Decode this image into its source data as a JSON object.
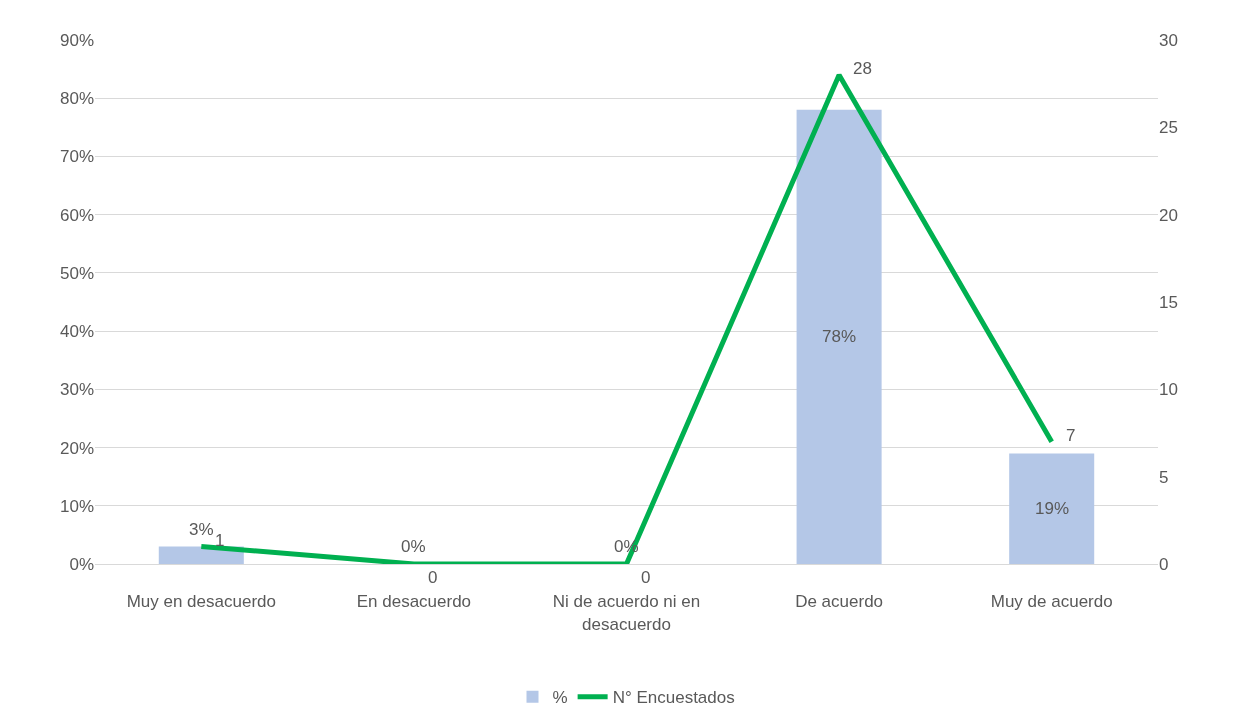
{
  "chart_data": {
    "type": "bar",
    "categories": [
      "Muy en desacuerdo",
      "En desacuerdo",
      "Ni de acuerdo ni en desacuerdo",
      "De acuerdo",
      "Muy de acuerdo"
    ],
    "series": [
      {
        "name": "%",
        "color": "#b4c7e7",
        "values": [
          3,
          0,
          0,
          78,
          19
        ],
        "value_labels": [
          "3%",
          "0%",
          "0%",
          "78%",
          "19%"
        ]
      },
      {
        "name": "N° Encuestados",
        "type": "line",
        "axis": "y2",
        "color": "#00b050",
        "values": [
          1,
          0,
          0,
          28,
          7
        ],
        "value_labels": [
          "1",
          "0",
          "0",
          "28",
          "7"
        ]
      }
    ],
    "ylim": [
      0,
      90
    ],
    "yticks": [
      {
        "value": 0,
        "label": "0%"
      },
      {
        "value": 10,
        "label": "10%"
      },
      {
        "value": 20,
        "label": "20%"
      },
      {
        "value": 30,
        "label": "30%"
      },
      {
        "value": 40,
        "label": "40%"
      },
      {
        "value": 50,
        "label": "50%"
      },
      {
        "value": 60,
        "label": "60%"
      },
      {
        "value": 70,
        "label": "70%"
      },
      {
        "value": 80,
        "label": "80%"
      },
      {
        "value": 90,
        "label": "90%"
      }
    ],
    "y2lim": [
      0,
      30
    ],
    "y2ticks": [
      0,
      5,
      10,
      15,
      20,
      25,
      30
    ],
    "grid": "y",
    "legend": "bottom",
    "marker": "none",
    "line_style": "solid"
  }
}
